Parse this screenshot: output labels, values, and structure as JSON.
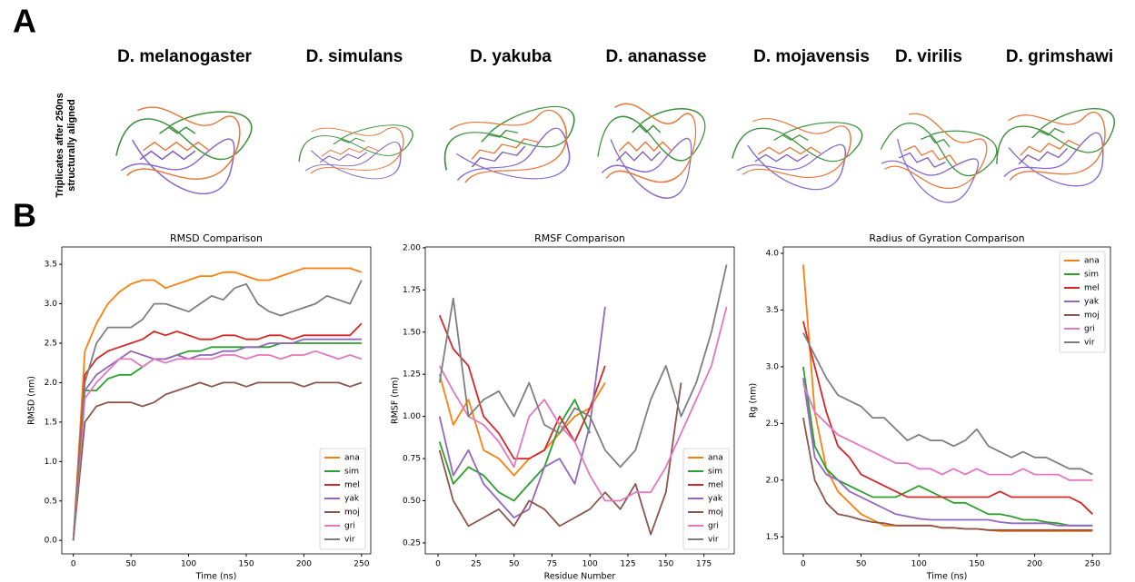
{
  "panel_a": {
    "label": "A",
    "species": [
      "D. melanogaster",
      "D. simulans",
      "D. yakuba",
      "D. ananasse",
      "D. mojavensis",
      "D. virilis",
      "D. grimshawi"
    ],
    "side_label": [
      "Triplicates after 250ns",
      "structurally aligned"
    ]
  },
  "panel_b": {
    "label": "B"
  },
  "chart_data": [
    {
      "type": "line",
      "title": "RMSD Comparison",
      "xlabel": "Time (ns)",
      "ylabel": "RMSD (nm)",
      "legend": "lower right",
      "grid": false,
      "x": [
        0,
        10,
        20,
        30,
        40,
        50,
        60,
        70,
        80,
        90,
        100,
        110,
        120,
        130,
        140,
        150,
        160,
        170,
        180,
        190,
        200,
        210,
        220,
        230,
        240,
        250
      ],
      "xlim": [
        -10,
        258
      ],
      "xticks": [
        0,
        50,
        100,
        150,
        200,
        250
      ],
      "ylim": [
        -0.17,
        3.72
      ],
      "yticks": [
        {
          "value": 0,
          "label": "0.0"
        },
        0.5,
        {
          "value": 1,
          "label": "1.0"
        },
        1.5,
        {
          "value": 2,
          "label": "2.0"
        },
        2.5,
        {
          "value": 3,
          "label": "3.0"
        },
        3.5
      ],
      "series": [
        {
          "name": "ana",
          "color": "#ff7f0e",
          "values": [
            0,
            2.4,
            2.75,
            3.0,
            3.15,
            3.25,
            3.3,
            3.3,
            3.2,
            3.25,
            3.3,
            3.35,
            3.35,
            3.4,
            3.4,
            3.35,
            3.3,
            3.3,
            3.35,
            3.4,
            3.45,
            3.45,
            3.45,
            3.45,
            3.45,
            3.4
          ]
        },
        {
          "name": "sim",
          "color": "#2ca02c",
          "values": [
            0,
            1.9,
            1.9,
            2.05,
            2.1,
            2.1,
            2.2,
            2.3,
            2.3,
            2.35,
            2.4,
            2.4,
            2.45,
            2.45,
            2.45,
            2.45,
            2.45,
            2.45,
            2.5,
            2.5,
            2.5,
            2.5,
            2.5,
            2.5,
            2.5,
            2.5
          ]
        },
        {
          "name": "mel",
          "color": "#d62728",
          "values": [
            0,
            2.1,
            2.3,
            2.4,
            2.45,
            2.5,
            2.55,
            2.65,
            2.6,
            2.65,
            2.6,
            2.55,
            2.55,
            2.6,
            2.6,
            2.55,
            2.55,
            2.6,
            2.6,
            2.55,
            2.6,
            2.6,
            2.6,
            2.6,
            2.6,
            2.75
          ]
        },
        {
          "name": "yak",
          "color": "#9467bd",
          "values": [
            0,
            1.9,
            2.1,
            2.2,
            2.3,
            2.4,
            2.35,
            2.3,
            2.3,
            2.35,
            2.3,
            2.35,
            2.35,
            2.4,
            2.4,
            2.45,
            2.45,
            2.5,
            2.5,
            2.5,
            2.55,
            2.55,
            2.55,
            2.55,
            2.55,
            2.55
          ]
        },
        {
          "name": "moj",
          "color": "#8c564b",
          "values": [
            0,
            1.5,
            1.7,
            1.75,
            1.75,
            1.75,
            1.7,
            1.75,
            1.85,
            1.9,
            1.95,
            2.0,
            1.95,
            2.0,
            2.0,
            1.95,
            2.0,
            2.0,
            2.0,
            2.0,
            1.95,
            2.0,
            2.0,
            2.0,
            1.95,
            2.0
          ]
        },
        {
          "name": "gri",
          "color": "#e377c2",
          "values": [
            0,
            1.8,
            2.0,
            2.15,
            2.3,
            2.3,
            2.2,
            2.3,
            2.25,
            2.3,
            2.3,
            2.3,
            2.3,
            2.35,
            2.35,
            2.3,
            2.35,
            2.35,
            2.3,
            2.35,
            2.35,
            2.4,
            2.35,
            2.3,
            2.35,
            2.3
          ]
        },
        {
          "name": "vir",
          "color": "#7f7f7f",
          "values": [
            0,
            2.0,
            2.5,
            2.7,
            2.7,
            2.7,
            2.8,
            3.0,
            3.0,
            2.95,
            2.9,
            3.0,
            3.1,
            3.05,
            3.2,
            3.25,
            3.0,
            2.9,
            2.85,
            2.9,
            2.95,
            3.0,
            3.1,
            3.05,
            3.0,
            3.3
          ]
        }
      ]
    },
    {
      "type": "line",
      "title": "RMSF Comparison",
      "xlabel": "Residue Number",
      "ylabel": "RMSF (nm)",
      "legend": "lower right",
      "grid": false,
      "x": [
        1,
        10,
        20,
        30,
        40,
        50,
        60,
        70,
        80,
        90,
        100,
        110,
        120,
        130,
        140,
        150,
        160,
        170,
        180,
        190
      ],
      "xlim": [
        -8.4,
        195
      ],
      "xticks": [
        0,
        25,
        50,
        75,
        100,
        125,
        150,
        175
      ],
      "ylim": [
        0.185,
        2.005
      ],
      "yticks": [
        0.25,
        {
          "value": 0.5,
          "label": "0.50"
        },
        0.75,
        {
          "value": 1,
          "label": "1.00"
        },
        1.25,
        {
          "value": 1.5,
          "label": "1.50"
        },
        1.75,
        {
          "value": 2,
          "label": "2.00"
        }
      ],
      "series": [
        {
          "name": "ana",
          "color": "#ff7f0e",
          "values": [
            1.25,
            0.95,
            1.1,
            0.8,
            0.75,
            0.65,
            0.75,
            0.8,
            0.9,
            1.0,
            1.05,
            1.2,
            null,
            null,
            null,
            null,
            null,
            null,
            null,
            null
          ]
        },
        {
          "name": "sim",
          "color": "#2ca02c",
          "values": [
            0.85,
            0.6,
            0.7,
            0.65,
            0.55,
            0.5,
            0.6,
            0.7,
            0.95,
            1.1,
            0.9,
            null,
            null,
            null,
            null,
            null,
            null,
            null,
            null,
            null
          ]
        },
        {
          "name": "mel",
          "color": "#d62728",
          "values": [
            1.6,
            1.4,
            1.3,
            1.0,
            0.9,
            0.75,
            0.75,
            0.8,
            1.0,
            0.85,
            1.05,
            1.3,
            null,
            null,
            null,
            null,
            null,
            null,
            null,
            null
          ]
        },
        {
          "name": "yak",
          "color": "#9467bd",
          "values": [
            1.0,
            0.65,
            0.8,
            0.6,
            0.5,
            0.4,
            0.45,
            0.7,
            0.75,
            0.6,
            0.95,
            1.65,
            null,
            null,
            null,
            null,
            null,
            null,
            null,
            null
          ]
        },
        {
          "name": "moj",
          "color": "#8c564b",
          "values": [
            0.8,
            0.5,
            0.35,
            0.4,
            0.45,
            0.35,
            0.5,
            0.45,
            0.35,
            0.4,
            0.45,
            0.55,
            0.45,
            0.6,
            0.3,
            0.55,
            1.2,
            null,
            null,
            null
          ]
        },
        {
          "name": "gri",
          "color": "#e377c2",
          "values": [
            1.3,
            1.15,
            1.0,
            0.95,
            0.85,
            0.7,
            1.0,
            1.1,
            0.95,
            0.85,
            0.65,
            0.5,
            0.5,
            0.55,
            0.55,
            0.7,
            0.9,
            1.1,
            1.3,
            1.65
          ]
        },
        {
          "name": "vir",
          "color": "#7f7f7f",
          "values": [
            1.2,
            1.7,
            1.0,
            1.1,
            1.15,
            1.0,
            1.2,
            0.95,
            0.9,
            1.05,
            1.0,
            0.8,
            0.7,
            0.8,
            1.1,
            1.3,
            1.0,
            1.2,
            1.5,
            1.9
          ]
        }
      ]
    },
    {
      "type": "line",
      "title": "Radius of Gyration Comparison",
      "xlabel": "Time (ns)",
      "ylabel": "Rg (nm)",
      "legend": "upper right",
      "grid": false,
      "x": [
        0,
        10,
        20,
        30,
        40,
        50,
        60,
        70,
        80,
        90,
        100,
        110,
        120,
        130,
        140,
        150,
        160,
        170,
        180,
        190,
        200,
        210,
        220,
        230,
        240,
        250
      ],
      "xlim": [
        -17.2,
        265.5
      ],
      "xticks": [
        0,
        50,
        100,
        150,
        200,
        250
      ],
      "ylim": [
        1.35,
        4.056
      ],
      "yticks": [
        1.5,
        {
          "value": 2,
          "label": "2.0"
        },
        2.5,
        {
          "value": 3,
          "label": "3.0"
        },
        3.5,
        {
          "value": 4,
          "label": "4.0"
        }
      ],
      "series": [
        {
          "name": "ana",
          "color": "#ff7f0e",
          "values": [
            3.9,
            2.6,
            2.1,
            1.9,
            1.8,
            1.7,
            1.65,
            1.6,
            1.6,
            1.6,
            1.6,
            1.6,
            1.58,
            1.58,
            1.57,
            1.57,
            1.56,
            1.55,
            1.55,
            1.55,
            1.55,
            1.55,
            1.55,
            1.55,
            1.55,
            1.55
          ]
        },
        {
          "name": "sim",
          "color": "#2ca02c",
          "values": [
            3.0,
            2.3,
            2.1,
            2.0,
            1.95,
            1.9,
            1.85,
            1.85,
            1.85,
            1.9,
            1.95,
            1.9,
            1.85,
            1.8,
            1.8,
            1.75,
            1.7,
            1.7,
            1.68,
            1.65,
            1.65,
            1.63,
            1.62,
            1.6,
            1.6,
            1.6
          ]
        },
        {
          "name": "mel",
          "color": "#d62728",
          "values": [
            3.4,
            3.0,
            2.6,
            2.3,
            2.2,
            2.05,
            2.0,
            1.95,
            1.9,
            1.85,
            1.85,
            1.85,
            1.85,
            1.85,
            1.85,
            1.85,
            1.85,
            1.9,
            1.85,
            1.85,
            1.85,
            1.85,
            1.85,
            1.85,
            1.8,
            1.7
          ]
        },
        {
          "name": "yak",
          "color": "#9467bd",
          "values": [
            2.9,
            2.2,
            2.05,
            2.0,
            1.9,
            1.85,
            1.8,
            1.75,
            1.7,
            1.68,
            1.66,
            1.65,
            1.65,
            1.65,
            1.65,
            1.65,
            1.65,
            1.63,
            1.62,
            1.62,
            1.62,
            1.62,
            1.6,
            1.6,
            1.6,
            1.6
          ]
        },
        {
          "name": "moj",
          "color": "#8c564b",
          "values": [
            2.55,
            2.0,
            1.8,
            1.7,
            1.68,
            1.65,
            1.63,
            1.62,
            1.6,
            1.6,
            1.6,
            1.6,
            1.58,
            1.58,
            1.57,
            1.57,
            1.56,
            1.56,
            1.56,
            1.56,
            1.56,
            1.56,
            1.56,
            1.56,
            1.56,
            1.56
          ]
        },
        {
          "name": "gri",
          "color": "#e377c2",
          "values": [
            2.85,
            2.6,
            2.5,
            2.4,
            2.35,
            2.3,
            2.25,
            2.2,
            2.15,
            2.15,
            2.1,
            2.1,
            2.05,
            2.1,
            2.05,
            2.1,
            2.05,
            2.05,
            2.05,
            2.1,
            2.05,
            2.05,
            2.05,
            2.0,
            2.0,
            2.0
          ]
        },
        {
          "name": "vir",
          "color": "#7f7f7f",
          "values": [
            3.3,
            3.1,
            2.9,
            2.75,
            2.7,
            2.65,
            2.55,
            2.55,
            2.45,
            2.35,
            2.4,
            2.35,
            2.35,
            2.3,
            2.35,
            2.45,
            2.3,
            2.25,
            2.2,
            2.25,
            2.2,
            2.2,
            2.15,
            2.1,
            2.1,
            2.05
          ]
        }
      ]
    }
  ]
}
